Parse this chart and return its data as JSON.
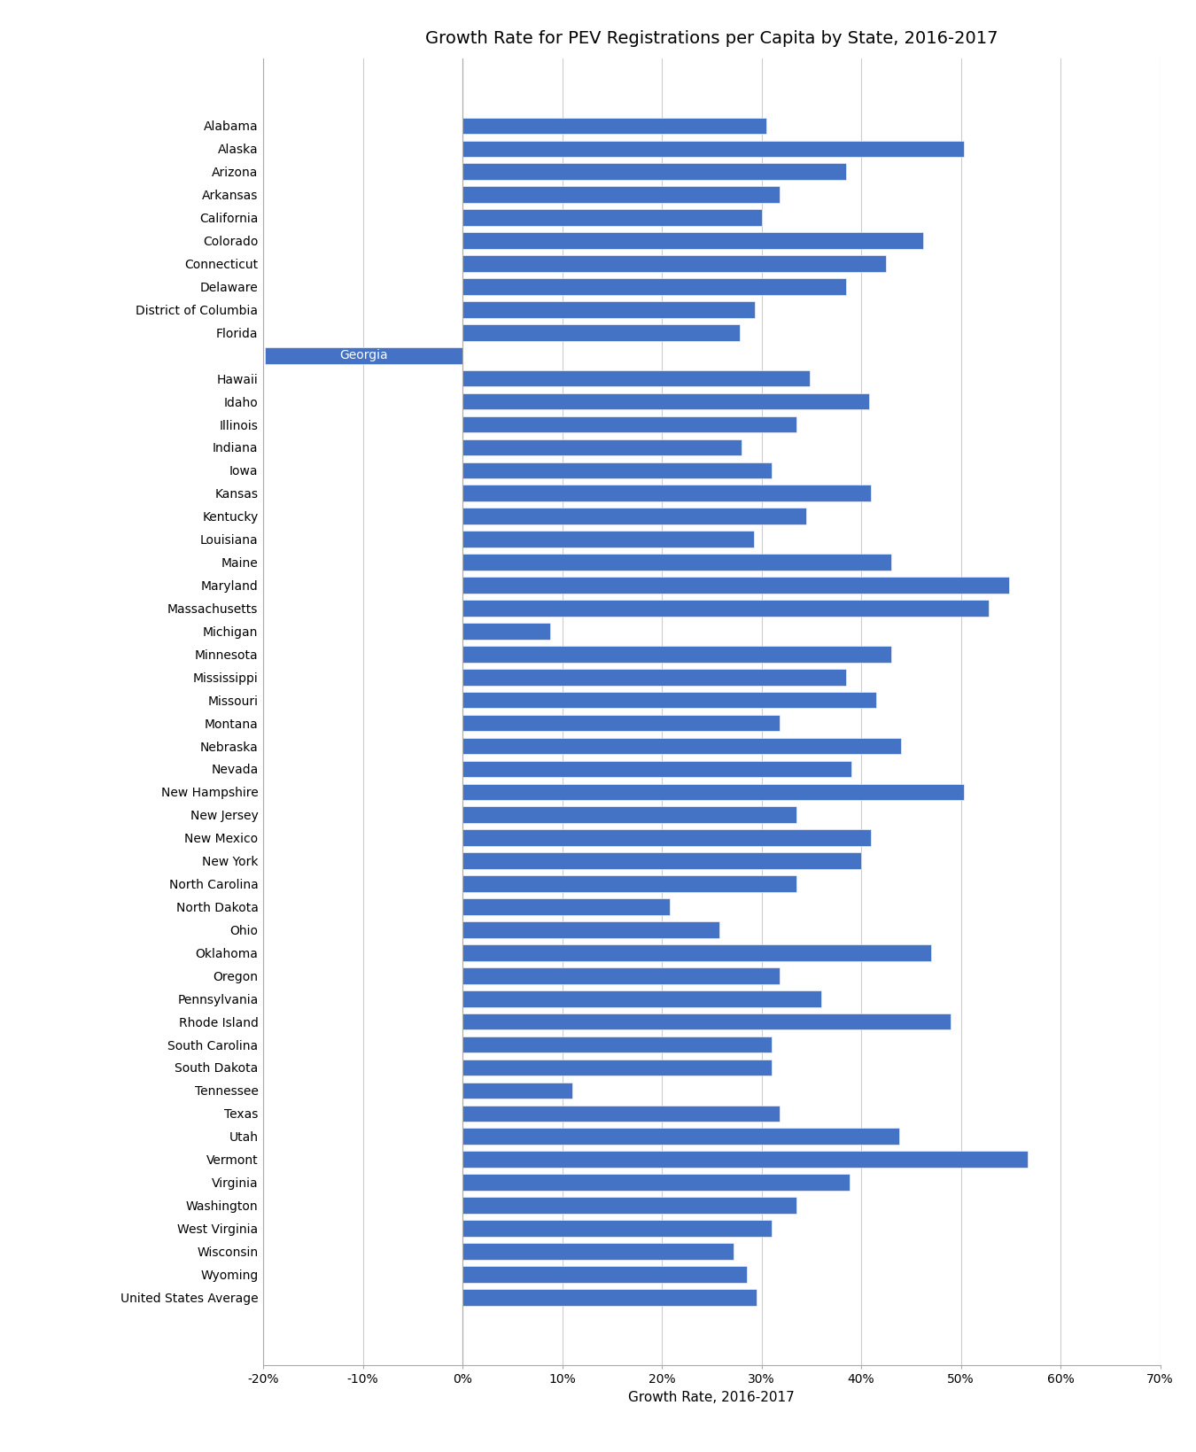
{
  "title": "Growth Rate for PEV Registrations per Capita by State, 2016-2017",
  "xlabel": "Growth Rate, 2016-2017",
  "states": [
    "Alabama",
    "Alaska",
    "Arizona",
    "Arkansas",
    "California",
    "Colorado",
    "Connecticut",
    "Delaware",
    "District of Columbia",
    "Florida",
    "Georgia",
    "Hawaii",
    "Idaho",
    "Illinois",
    "Indiana",
    "Iowa",
    "Kansas",
    "Kentucky",
    "Louisiana",
    "Maine",
    "Maryland",
    "Massachusetts",
    "Michigan",
    "Minnesota",
    "Mississippi",
    "Missouri",
    "Montana",
    "Nebraska",
    "Nevada",
    "New Hampshire",
    "New Jersey",
    "New Mexico",
    "New York",
    "North Carolina",
    "North Dakota",
    "Ohio",
    "Oklahoma",
    "Oregon",
    "Pennsylvania",
    "Rhode Island",
    "South Carolina",
    "South Dakota",
    "Tennessee",
    "Texas",
    "Utah",
    "Vermont",
    "Virginia",
    "Washington",
    "West Virginia",
    "Wisconsin",
    "Wyoming",
    "United States Average"
  ],
  "values": [
    0.305,
    0.503,
    0.385,
    0.318,
    0.3,
    0.462,
    0.425,
    0.385,
    0.293,
    0.278,
    -0.198,
    0.348,
    0.408,
    0.335,
    0.28,
    0.31,
    0.41,
    0.345,
    0.292,
    0.43,
    0.548,
    0.528,
    0.088,
    0.43,
    0.385,
    0.415,
    0.318,
    0.44,
    0.39,
    0.503,
    0.335,
    0.41,
    0.4,
    0.335,
    0.208,
    0.258,
    0.47,
    0.318,
    0.36,
    0.49,
    0.31,
    0.31,
    0.11,
    0.318,
    0.438,
    0.567,
    0.388,
    0.335,
    0.31,
    0.272,
    0.285,
    0.295
  ],
  "bar_color": "#4472C4",
  "xlim_lo": -0.2,
  "xlim_hi": 0.7,
  "xticks": [
    -0.2,
    -0.1,
    0.0,
    0.1,
    0.2,
    0.3,
    0.4,
    0.5,
    0.6,
    0.7
  ],
  "xtick_labels": [
    "-20%",
    "-10%",
    "0%",
    "10%",
    "20%",
    "30%",
    "40%",
    "50%",
    "60%",
    "70%"
  ],
  "georgia_index": 10,
  "title_fontsize": 14,
  "label_fontsize": 10,
  "axis_label_fontsize": 11
}
